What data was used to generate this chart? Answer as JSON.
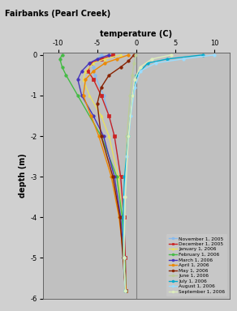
{
  "title": "Fairbanks (Pearl Creek)",
  "xlabel": "temperature (C)",
  "ylabel": "depth (m)",
  "xlim": [
    -12,
    12
  ],
  "ylim": [
    -6,
    0.05
  ],
  "bg_color": "#c0c0c0",
  "vline_color": "#808080",
  "series": [
    {
      "label": "November 1, 2005",
      "color": "#88bbee",
      "marker": "o",
      "depths": [
        0,
        -0.15,
        -0.3,
        -0.5,
        -1.0,
        -2.0,
        -3.0,
        -4.0,
        -5.0,
        -5.8
      ],
      "temps": [
        -4.5,
        -5.2,
        -5.5,
        -5.3,
        -4.2,
        -2.8,
        -2.0,
        -1.6,
        -1.4,
        -1.3
      ]
    },
    {
      "label": "December 1, 2005",
      "color": "#cc2222",
      "marker": "s",
      "depths": [
        0,
        -0.1,
        -0.2,
        -0.4,
        -0.6,
        -1.0,
        -1.5,
        -2.0,
        -3.0,
        -4.0,
        -5.0,
        -5.8
      ],
      "temps": [
        -3.0,
        -4.5,
        -5.8,
        -6.2,
        -5.5,
        -4.5,
        -3.5,
        -2.8,
        -2.0,
        -1.6,
        -1.4,
        -1.3
      ]
    },
    {
      "label": "January 1, 2006",
      "color": "#e8e060",
      "marker": "^",
      "depths": [
        0,
        -0.1,
        -0.2,
        -0.4,
        -0.6,
        -1.0,
        -1.5,
        -2.0,
        -3.0,
        -4.0,
        -5.0,
        -5.8
      ],
      "temps": [
        -2.0,
        -4.0,
        -5.5,
        -6.5,
        -6.8,
        -6.0,
        -4.5,
        -3.5,
        -2.3,
        -1.8,
        -1.5,
        -1.3
      ]
    },
    {
      "label": "February 1, 2006",
      "color": "#44bb44",
      "marker": "o",
      "depths": [
        0,
        -0.1,
        -0.3,
        -0.5,
        -1.0,
        -2.0,
        -3.0,
        -4.0,
        -5.0,
        -5.8
      ],
      "temps": [
        -9.5,
        -9.8,
        -9.5,
        -9.0,
        -7.5,
        -4.5,
        -2.5,
        -1.8,
        -1.5,
        -1.3
      ]
    },
    {
      "label": "March 1, 2006",
      "color": "#4433bb",
      "marker": "o",
      "depths": [
        0,
        -0.1,
        -0.2,
        -0.4,
        -0.6,
        -1.0,
        -1.5,
        -2.0,
        -3.0,
        -4.0,
        -5.0,
        -5.8
      ],
      "temps": [
        -3.5,
        -5.0,
        -6.0,
        -7.0,
        -7.5,
        -7.0,
        -5.5,
        -4.2,
        -2.8,
        -2.0,
        -1.6,
        -1.3
      ]
    },
    {
      "label": "April 1, 2006",
      "color": "#ee8800",
      "marker": "o",
      "depths": [
        0,
        -0.1,
        -0.2,
        -0.4,
        -0.6,
        -1.0,
        -1.5,
        -2.0,
        -3.0,
        -4.0,
        -5.0,
        -5.8
      ],
      "temps": [
        -1.0,
        -2.5,
        -4.0,
        -5.5,
        -6.5,
        -6.8,
        -5.8,
        -4.8,
        -3.2,
        -2.2,
        -1.6,
        -1.3
      ]
    },
    {
      "label": "May 1, 2006",
      "color": "#882200",
      "marker": "o",
      "depths": [
        0,
        -0.15,
        -0.3,
        -0.5,
        -0.8,
        -1.2,
        -2.0,
        -3.0,
        -4.0,
        -5.0,
        -5.8
      ],
      "temps": [
        -0.3,
        -1.0,
        -2.0,
        -3.5,
        -4.5,
        -5.0,
        -4.5,
        -3.0,
        -2.1,
        -1.7,
        -1.4
      ]
    },
    {
      "label": "June 1, 2006",
      "color": "#bbcc99",
      "marker": "o",
      "depths": [
        0,
        -0.2,
        -0.5,
        -1.0,
        -2.0,
        -3.0,
        -4.0,
        -5.0,
        -5.8
      ],
      "temps": [
        -0.1,
        -0.3,
        -0.5,
        -0.8,
        -1.2,
        -1.5,
        -1.7,
        -1.6,
        -1.4
      ]
    },
    {
      "label": "July 1, 2006",
      "color": "#00aacc",
      "marker": "o",
      "depths": [
        0,
        -0.1,
        -0.2,
        -0.5,
        -1.0,
        -2.0,
        -3.0,
        -4.0,
        -5.0,
        -5.8
      ],
      "temps": [
        8.5,
        4.0,
        1.5,
        0.0,
        -0.5,
        -1.0,
        -1.5,
        -1.7,
        -1.6,
        -1.4
      ]
    },
    {
      "label": "August 1, 2006",
      "color": "#99ddff",
      "marker": "o",
      "depths": [
        0,
        -0.1,
        -0.2,
        -0.4,
        -0.8,
        -1.5,
        -2.5,
        -3.5,
        -5.0,
        -5.8
      ],
      "temps": [
        10.0,
        6.0,
        2.5,
        0.5,
        -0.2,
        -0.7,
        -1.2,
        -1.5,
        -1.6,
        -1.4
      ]
    },
    {
      "label": "September 1, 2006",
      "color": "#ddeebb",
      "marker": "o",
      "depths": [
        0,
        -0.1,
        -0.3,
        -0.6,
        -1.0,
        -2.0,
        -3.5,
        -5.0,
        -5.8
      ],
      "temps": [
        4.5,
        2.0,
        0.5,
        -0.2,
        -0.5,
        -1.0,
        -1.4,
        -1.6,
        -1.4
      ]
    }
  ]
}
